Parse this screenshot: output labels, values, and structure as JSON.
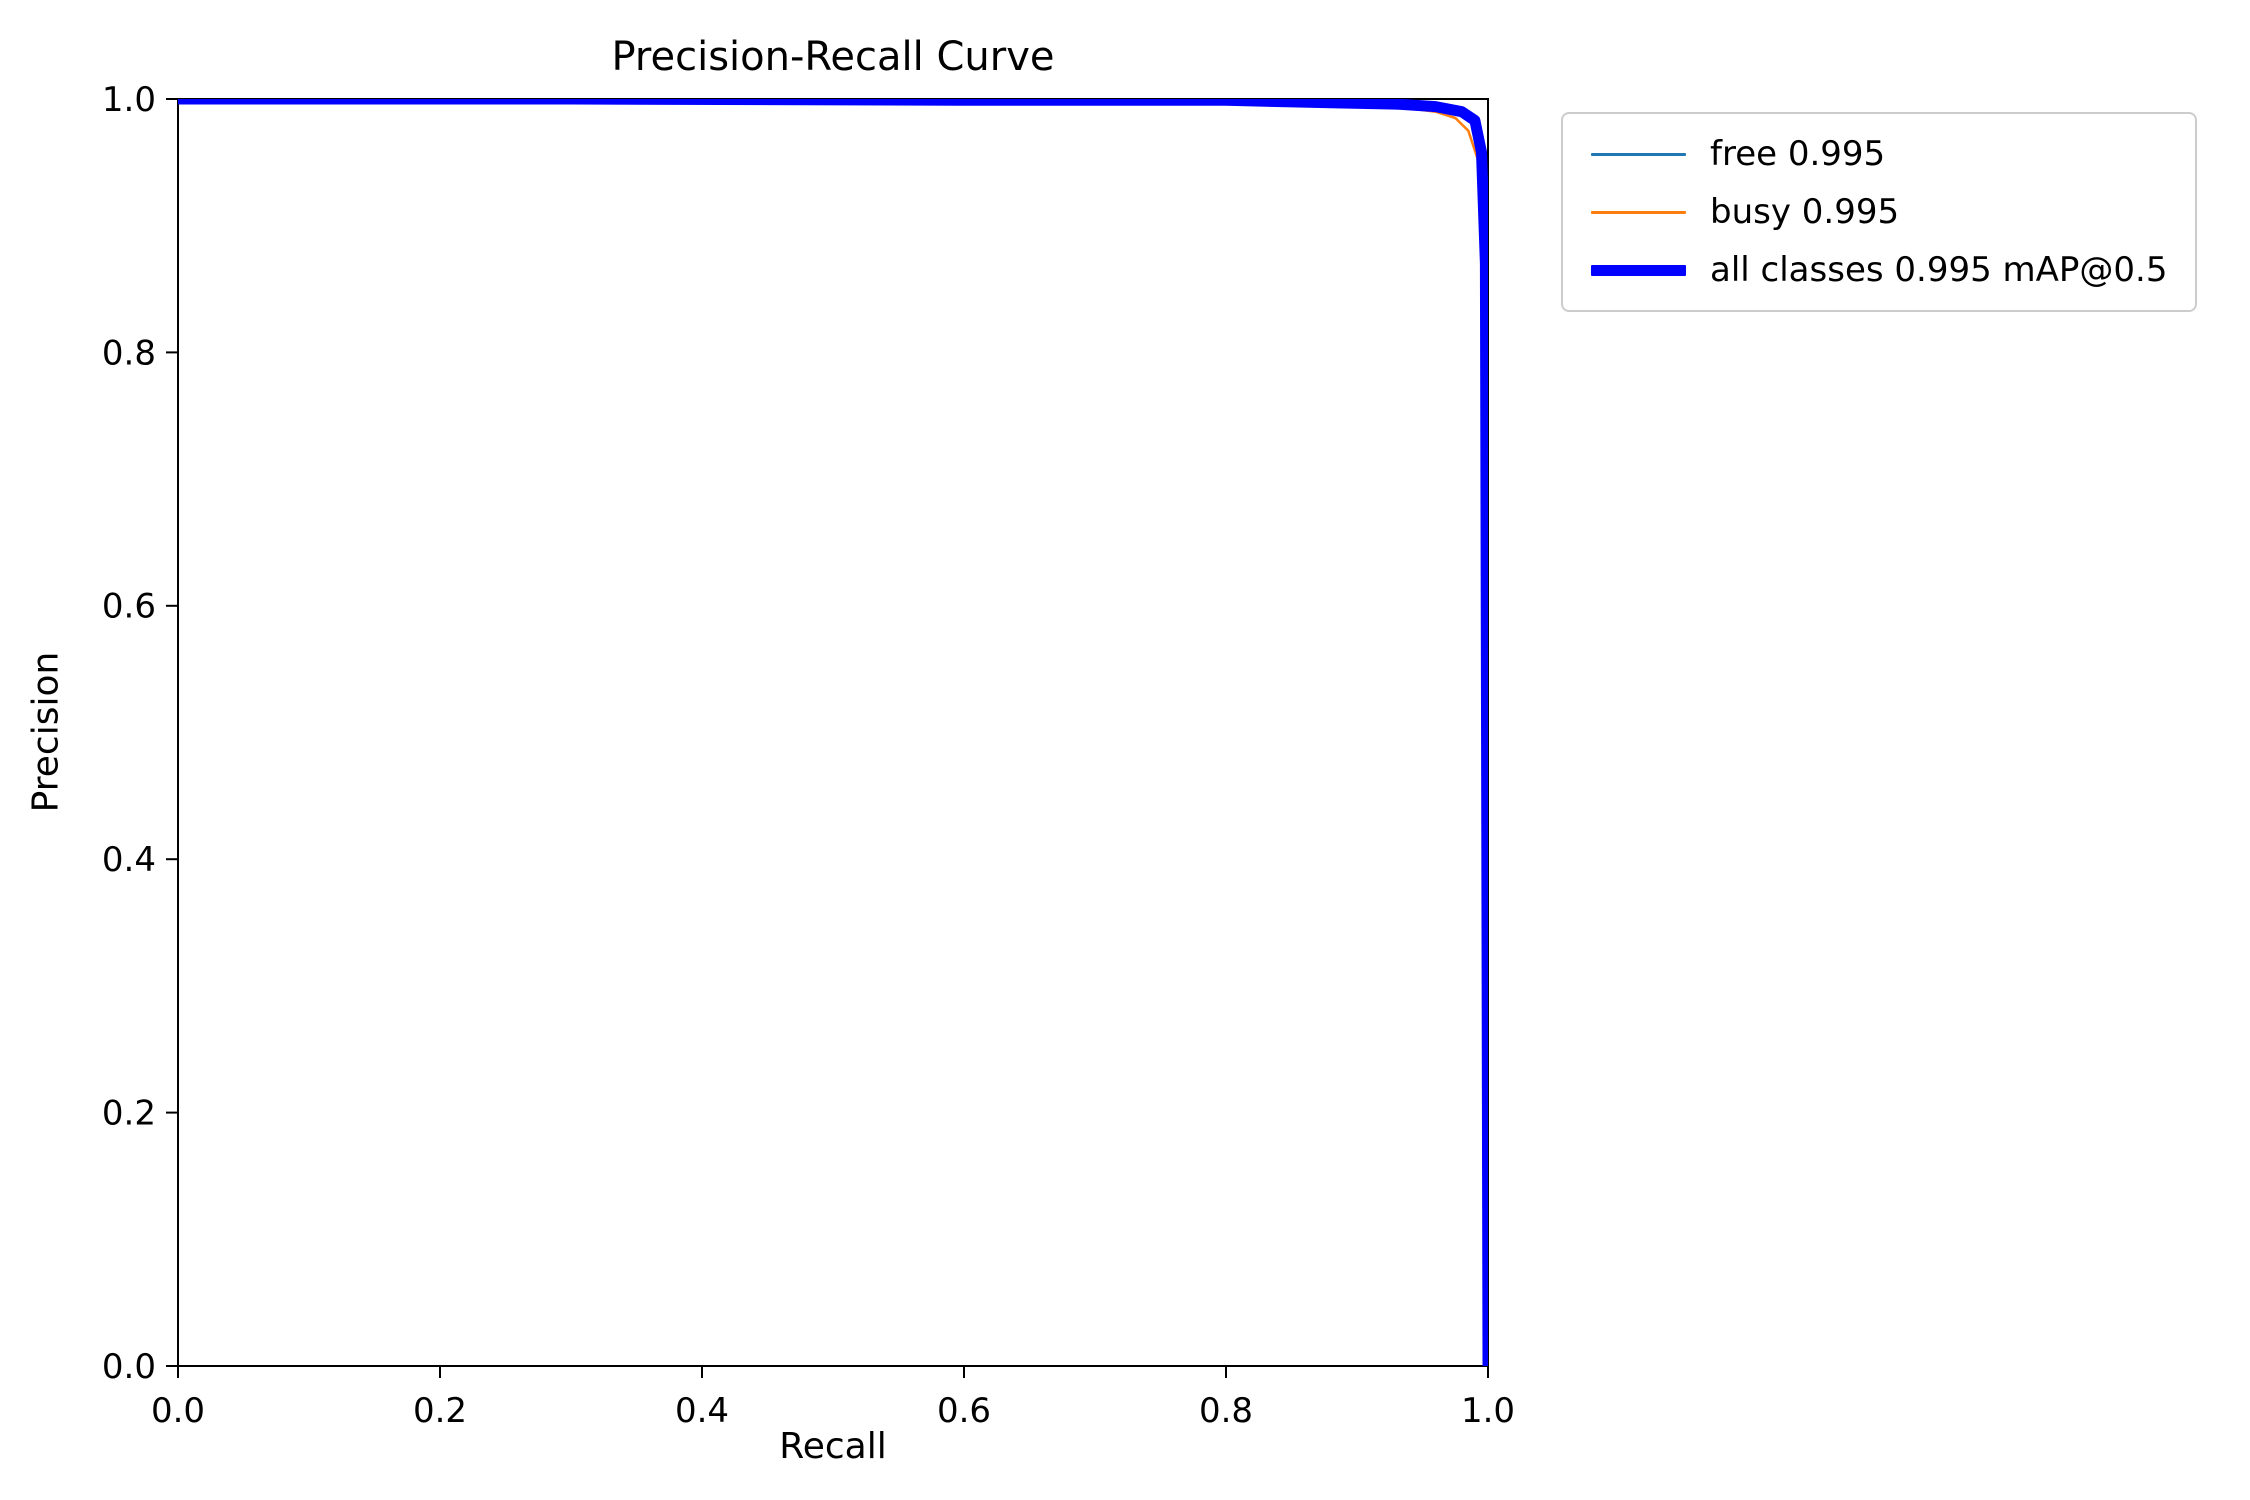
{
  "chart_data": {
    "type": "line",
    "title": "Precision-Recall Curve",
    "xlabel": "Recall",
    "ylabel": "Precision",
    "xlim": [
      0.0,
      1.0
    ],
    "ylim": [
      0.0,
      1.0
    ],
    "xticks": [
      0.0,
      0.2,
      0.4,
      0.6,
      0.8,
      1.0
    ],
    "xtick_labels": [
      "0.0",
      "0.2",
      "0.4",
      "0.6",
      "0.8",
      "1.0"
    ],
    "yticks": [
      0.0,
      0.2,
      0.4,
      0.6,
      0.8,
      1.0
    ],
    "ytick_labels": [
      "0.0",
      "0.2",
      "0.4",
      "0.6",
      "0.8",
      "1.0"
    ],
    "grid": false,
    "legend_position": "outside-upper-right",
    "background_color": "#ffffff",
    "spine_color": "#000000",
    "series": [
      {
        "name": "free 0.995",
        "class": "free",
        "ap": 0.995,
        "color": "#1f77b4",
        "linewidth": 2.5,
        "points": [
          [
            0.0,
            1.0
          ],
          [
            0.3,
            1.0
          ],
          [
            0.6,
            0.999
          ],
          [
            0.8,
            0.999
          ],
          [
            0.88,
            0.998
          ],
          [
            0.93,
            0.997
          ],
          [
            0.96,
            0.996
          ],
          [
            0.98,
            0.993
          ],
          [
            0.99,
            0.986
          ],
          [
            0.995,
            0.965
          ],
          [
            0.998,
            0.9
          ],
          [
            0.999,
            0.6
          ],
          [
            1.0,
            0.0
          ]
        ]
      },
      {
        "name": "busy 0.995",
        "class": "busy",
        "ap": 0.995,
        "color": "#ff7f0e",
        "linewidth": 2.5,
        "points": [
          [
            0.0,
            1.0
          ],
          [
            0.3,
            1.0
          ],
          [
            0.6,
            0.999
          ],
          [
            0.8,
            0.998
          ],
          [
            0.88,
            0.996
          ],
          [
            0.93,
            0.994
          ],
          [
            0.96,
            0.99
          ],
          [
            0.975,
            0.985
          ],
          [
            0.985,
            0.975
          ],
          [
            0.993,
            0.95
          ],
          [
            0.997,
            0.88
          ],
          [
            0.999,
            0.5
          ],
          [
            1.0,
            0.0
          ]
        ]
      },
      {
        "name": "all classes 0.995 mAP@0.5",
        "class": "all classes",
        "ap": 0.995,
        "map_threshold": "mAP@0.5",
        "color": "#0000ff",
        "linewidth": 11,
        "points": [
          [
            0.0,
            1.0
          ],
          [
            0.3,
            1.0
          ],
          [
            0.6,
            0.999
          ],
          [
            0.8,
            0.999
          ],
          [
            0.88,
            0.997
          ],
          [
            0.93,
            0.996
          ],
          [
            0.96,
            0.994
          ],
          [
            0.98,
            0.99
          ],
          [
            0.99,
            0.983
          ],
          [
            0.995,
            0.958
          ],
          [
            0.998,
            0.87
          ],
          [
            0.999,
            0.45
          ],
          [
            1.0,
            0.0
          ]
        ]
      }
    ]
  }
}
